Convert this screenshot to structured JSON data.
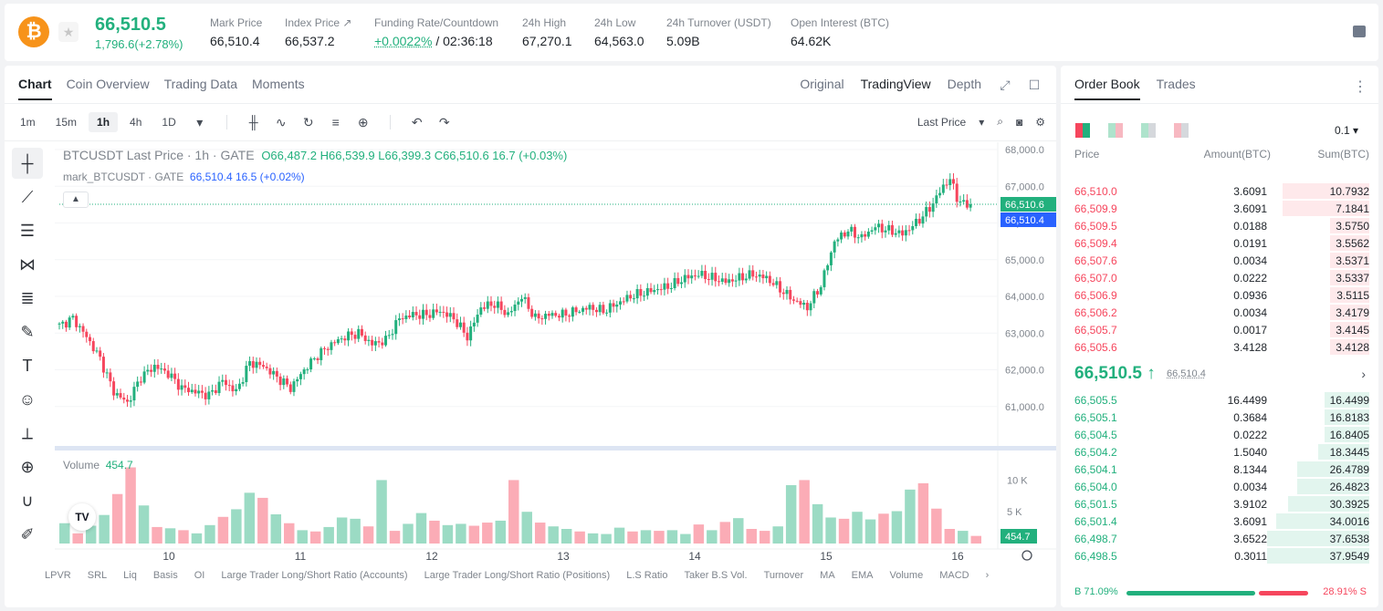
{
  "ticker": {
    "last_price": "66,510.5",
    "change": "1,796.6(+2.78%)",
    "stats": [
      {
        "label": "Mark Price",
        "value": "66,510.4"
      },
      {
        "label": "Index Price ↗",
        "value": "66,537.2"
      },
      {
        "label": "Funding Rate/Countdown",
        "value_green": "+0.0022%",
        "value_rest": " / 02:36:18"
      },
      {
        "label": "24h High",
        "value": "67,270.1"
      },
      {
        "label": "24h Low",
        "value": "64,563.0"
      },
      {
        "label": "24h Turnover (USDT)",
        "value": "5.09B"
      },
      {
        "label": "Open Interest (BTC)",
        "value": "64.62K"
      }
    ]
  },
  "chart_tabs": [
    "Chart",
    "Coin Overview",
    "Trading Data",
    "Moments"
  ],
  "view_tabs": [
    "Original",
    "TradingView",
    "Depth"
  ],
  "timeframes": [
    "1m",
    "15m",
    "1h",
    "4h",
    "1D"
  ],
  "active_timeframe": "1h",
  "price_type": "Last Price",
  "legend": {
    "title": "BTCUSDT Last Price · 1h · GATE",
    "ohlc": "O66,487.2 H66,539.9 L66,399.3 C66,510.6 16.7 (+0.03%)",
    "mark_name": "mark_BTCUSDT · GATE",
    "mark_values": "66,510.4 16.5 (+0.02%)"
  },
  "volume_legend": {
    "label": "Volume",
    "value": "454.7"
  },
  "indicators": [
    "LPVR",
    "SRL",
    "Liq",
    "Basis",
    "OI",
    "Large Trader Long/Short Ratio (Accounts)",
    "Large Trader Long/Short Ratio (Positions)",
    "L.S Ratio",
    "Taker B.S Vol.",
    "Turnover",
    "MA",
    "EMA",
    "Volume",
    "MACD"
  ],
  "chart_data": {
    "type": "candlestick",
    "x_ticks": [
      "10",
      "11",
      "12",
      "13",
      "14",
      "15",
      "16"
    ],
    "y_ticks": [
      "68,000.0",
      "67,000.0",
      "66,000.0",
      "65,000.0",
      "64,000.0",
      "63,000.0",
      "62,000.0",
      "61,000.0"
    ],
    "ylim": [
      60000,
      68200
    ],
    "close_label": "66,510.6",
    "mark_label": "66,510.4",
    "volume_ticks": [
      "10 K",
      "5 K"
    ],
    "volume_label": "454.7",
    "close_path": [
      [
        0,
        63200
      ],
      [
        4,
        63400
      ],
      [
        8,
        62900
      ],
      [
        12,
        62300
      ],
      [
        16,
        61400
      ],
      [
        20,
        61100
      ],
      [
        24,
        61800
      ],
      [
        28,
        62100
      ],
      [
        32,
        61900
      ],
      [
        36,
        61500
      ],
      [
        40,
        61400
      ],
      [
        44,
        61300
      ],
      [
        48,
        61700
      ],
      [
        52,
        61400
      ],
      [
        56,
        62200
      ],
      [
        60,
        62100
      ],
      [
        64,
        61800
      ],
      [
        68,
        61500
      ],
      [
        72,
        62000
      ],
      [
        76,
        62400
      ],
      [
        80,
        62700
      ],
      [
        84,
        62900
      ],
      [
        88,
        63000
      ],
      [
        92,
        62700
      ],
      [
        96,
        62800
      ],
      [
        100,
        63400
      ],
      [
        104,
        63500
      ],
      [
        108,
        63500
      ],
      [
        112,
        63600
      ],
      [
        116,
        63400
      ],
      [
        120,
        62900
      ],
      [
        124,
        63700
      ],
      [
        128,
        63800
      ],
      [
        132,
        63500
      ],
      [
        136,
        64000
      ],
      [
        140,
        63400
      ],
      [
        144,
        63500
      ],
      [
        148,
        63500
      ],
      [
        152,
        63600
      ],
      [
        156,
        63700
      ],
      [
        160,
        63600
      ],
      [
        164,
        63800
      ],
      [
        168,
        64000
      ],
      [
        172,
        64100
      ],
      [
        176,
        64200
      ],
      [
        180,
        64300
      ],
      [
        184,
        64500
      ],
      [
        188,
        64600
      ],
      [
        192,
        64500
      ],
      [
        196,
        64400
      ],
      [
        200,
        64500
      ],
      [
        204,
        64600
      ],
      [
        208,
        64500
      ],
      [
        212,
        64200
      ],
      [
        216,
        63900
      ],
      [
        220,
        63700
      ],
      [
        224,
        64300
      ],
      [
        228,
        65500
      ],
      [
        232,
        65800
      ],
      [
        236,
        65600
      ],
      [
        240,
        65900
      ],
      [
        244,
        65800
      ],
      [
        248,
        65700
      ],
      [
        252,
        66000
      ],
      [
        256,
        66400
      ],
      [
        260,
        67000
      ],
      [
        262,
        67200
      ],
      [
        264,
        66700
      ],
      [
        266,
        66500
      ],
      [
        268,
        66510
      ]
    ],
    "volume": [
      3200,
      1600,
      2800,
      4500,
      7800,
      12000,
      6000,
      2600,
      2400,
      2100,
      1600,
      2900,
      4200,
      5400,
      8000,
      7200,
      4600,
      3200,
      2100,
      1900,
      2600,
      4100,
      3900,
      2700,
      10000,
      2000,
      3100,
      4800,
      3600,
      2900,
      3100,
      2800,
      3300,
      3600,
      10000,
      5000,
      3300,
      2700,
      2300,
      1900,
      1600,
      1500,
      2500,
      1900,
      2100,
      2000,
      2100,
      1500,
      3000,
      2100,
      3400,
      4000,
      2300,
      2000,
      2700,
      9200,
      10000,
      6200,
      4100,
      3900,
      5000,
      3800,
      4700,
      5100,
      8500,
      9500,
      5500,
      2300,
      2000,
      1200
    ],
    "volume_colors": [
      "g",
      "r",
      "g",
      "g",
      "r",
      "r",
      "g",
      "r",
      "g",
      "r",
      "g",
      "g",
      "r",
      "g",
      "g",
      "r",
      "g",
      "r",
      "g",
      "r",
      "g",
      "g",
      "g",
      "r",
      "g",
      "r",
      "g",
      "g",
      "r",
      "g",
      "g",
      "r",
      "r",
      "g",
      "r",
      "g",
      "r",
      "g",
      "g",
      "r",
      "g",
      "g",
      "g",
      "r",
      "g",
      "r",
      "g",
      "g",
      "r",
      "g",
      "r",
      "g",
      "r",
      "r",
      "g",
      "g",
      "r",
      "g",
      "g",
      "r",
      "g",
      "g",
      "r",
      "g",
      "g",
      "r",
      "r",
      "r",
      "g",
      "r"
    ]
  },
  "order_book": {
    "tabs": [
      "Order Book",
      "Trades"
    ],
    "depth": "0.1",
    "headers": {
      "price": "Price",
      "amount": "Amount(BTC)",
      "sum": "Sum(BTC)"
    },
    "asks": [
      {
        "price": "66,510.0",
        "amount": "3.6091",
        "sum": "10.7932",
        "depth": 0.29
      },
      {
        "price": "66,509.9",
        "amount": "3.6091",
        "sum": "7.1841",
        "depth": 0.29
      },
      {
        "price": "66,509.5",
        "amount": "0.0188",
        "sum": "3.5750",
        "depth": 0.13
      },
      {
        "price": "66,509.4",
        "amount": "0.0191",
        "sum": "3.5562",
        "depth": 0.13
      },
      {
        "price": "66,507.6",
        "amount": "0.0034",
        "sum": "3.5371",
        "depth": 0.13
      },
      {
        "price": "66,507.0",
        "amount": "0.0222",
        "sum": "3.5337",
        "depth": 0.13
      },
      {
        "price": "66,506.9",
        "amount": "0.0936",
        "sum": "3.5115",
        "depth": 0.13
      },
      {
        "price": "66,506.2",
        "amount": "0.0034",
        "sum": "3.4179",
        "depth": 0.13
      },
      {
        "price": "66,505.7",
        "amount": "0.0017",
        "sum": "3.4145",
        "depth": 0.13
      },
      {
        "price": "66,505.6",
        "amount": "3.4128",
        "sum": "3.4128",
        "depth": 0.13
      }
    ],
    "mid_price": "66,510.5 ↑",
    "mid_mark": "66,510.4",
    "bids": [
      {
        "price": "66,505.5",
        "amount": "16.4499",
        "sum": "16.4499",
        "depth": 0.15
      },
      {
        "price": "66,505.1",
        "amount": "0.3684",
        "sum": "16.8183",
        "depth": 0.15
      },
      {
        "price": "66,504.5",
        "amount": "0.0222",
        "sum": "16.8405",
        "depth": 0.15
      },
      {
        "price": "66,504.2",
        "amount": "1.5040",
        "sum": "18.3445",
        "depth": 0.17
      },
      {
        "price": "66,504.1",
        "amount": "8.1344",
        "sum": "26.4789",
        "depth": 0.24
      },
      {
        "price": "66,504.0",
        "amount": "0.0034",
        "sum": "26.4823",
        "depth": 0.24
      },
      {
        "price": "66,501.5",
        "amount": "3.9102",
        "sum": "30.3925",
        "depth": 0.27
      },
      {
        "price": "66,501.4",
        "amount": "3.6091",
        "sum": "34.0016",
        "depth": 0.31
      },
      {
        "price": "66,498.7",
        "amount": "3.6522",
        "sum": "37.6538",
        "depth": 0.34
      },
      {
        "price": "66,498.5",
        "amount": "0.3011",
        "sum": "37.9549",
        "depth": 0.34
      }
    ],
    "buy_ratio": "B 71.09%",
    "sell_ratio": "28.91% S",
    "buy_fraction": 0.7109
  },
  "colors": {
    "up": "#22b07d",
    "down": "#f6465d",
    "mark": "#2962ff"
  }
}
